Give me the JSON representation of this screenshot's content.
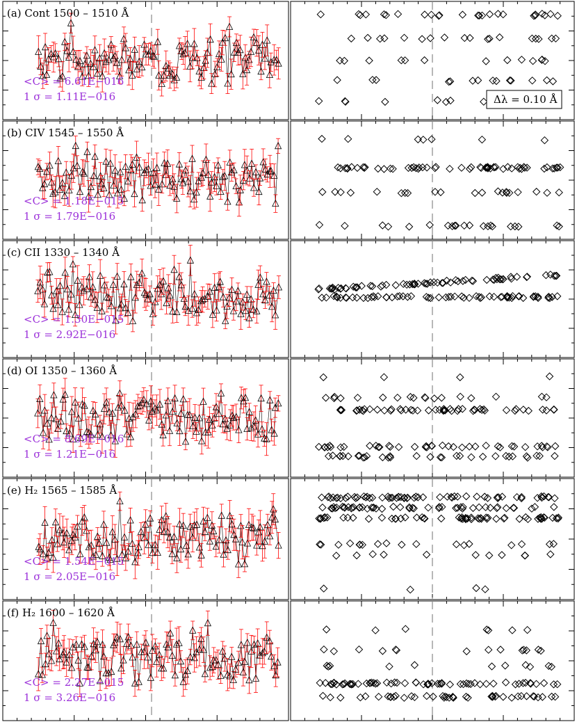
{
  "colors": {
    "stat": "#9b30d9",
    "error": "#ff0000",
    "mark": "#000000",
    "guide": "#888888"
  },
  "legend": {
    "delta_lambda": "Δλ = 0.10 Å"
  },
  "chart_data": [
    {
      "type": "scatter",
      "panel": "a",
      "title": "(a) Cont 1500 – 1510 Å",
      "mean_label": "<C> = 6.61E−016",
      "sigma_label": "1 σ = 1.11E−016",
      "mean": 6.61e-16,
      "sigma": 1.11e-16,
      "ylim": [
        0.15,
        1.15
      ],
      "diamond_rows": [
        {
          "y": 0.95,
          "density": 0.35
        },
        {
          "y": 0.72,
          "density": 0.25
        },
        {
          "y": 0.5,
          "density": 0.18
        },
        {
          "y": 0.3,
          "density": 0.2
        },
        {
          "y": 0.1,
          "density": 0.15
        }
      ]
    },
    {
      "type": "scatter",
      "panel": "b",
      "title": "(b) CIV 1545 – 1550 Å",
      "mean_label": "<C> = 1.18E−015",
      "sigma_label": "1 σ = 1.79E−016",
      "mean": 1.18e-15,
      "sigma": 1.79e-16,
      "ylim": [
        0.25,
        1.15
      ],
      "diamond_rows": [
        {
          "y": 0.9,
          "density": 0.1
        },
        {
          "y": 0.62,
          "density": 0.8
        },
        {
          "y": 0.38,
          "density": 0.3
        },
        {
          "y": 0.05,
          "density": 0.3
        }
      ]
    },
    {
      "type": "scatter",
      "panel": "c",
      "title": "(c) CII 1330 – 1340 Å",
      "mean_label": "<C> = 1.30E−015",
      "sigma_label": "1 σ = 2.92E−016",
      "mean": 1.3e-15,
      "sigma": 2.92e-16,
      "ylim": [
        0.1,
        1.1
      ],
      "diamond_rows": [
        {
          "y_start": 0.58,
          "y_end": 0.75,
          "density": 0.95
        },
        {
          "y": 0.52,
          "density": 0.9
        }
      ]
    },
    {
      "type": "scatter",
      "panel": "d",
      "title": "(d) OI 1350 – 1360 Å",
      "mean_label": "<C> = 8.69E−016",
      "sigma_label": "1 σ = 1.21E−016",
      "mean": 8.69e-16,
      "sigma": 1.21e-16,
      "ylim": [
        0.3,
        1.15
      ],
      "diamond_rows": [
        {
          "y": 0.9,
          "density": 0.05
        },
        {
          "y": 0.7,
          "density": 0.25
        },
        {
          "y": 0.58,
          "density": 0.7
        },
        {
          "y": 0.22,
          "density": 0.55
        },
        {
          "y": 0.12,
          "density": 0.45
        }
      ]
    },
    {
      "type": "scatter",
      "panel": "e",
      "title": "(e) H₂ 1565 – 1585 Å",
      "mean_label": "<C> = 1.54E−015",
      "sigma_label": "1 σ = 2.05E−016",
      "mean": 1.54e-15,
      "sigma": 2.05e-16,
      "ylim": [
        0.05,
        1.15
      ],
      "diamond_rows": [
        {
          "y": 0.9,
          "density": 0.85
        },
        {
          "y": 0.8,
          "density": 0.7
        },
        {
          "y": 0.7,
          "density": 0.8
        },
        {
          "y": 0.45,
          "density": 0.25
        },
        {
          "y": 0.35,
          "density": 0.15
        },
        {
          "y": 0.02,
          "density": 0.05
        }
      ]
    },
    {
      "type": "scatter",
      "panel": "f",
      "title": "(f) H₂ 1600 – 1620 Å",
      "mean_label": "<C> = 2.27E−015",
      "sigma_label": "1 σ = 3.26E−016",
      "mean": 2.27e-15,
      "sigma": 3.26e-16,
      "ylim": [
        -0.1,
        1.2
      ],
      "diamond_rows": [
        {
          "y": 0.8,
          "density": 0.1
        },
        {
          "y": 0.6,
          "density": 0.2
        },
        {
          "y": 0.45,
          "density": 0.15
        },
        {
          "y": 0.28,
          "density": 0.85
        },
        {
          "y": 0.15,
          "density": 0.6
        }
      ]
    }
  ]
}
